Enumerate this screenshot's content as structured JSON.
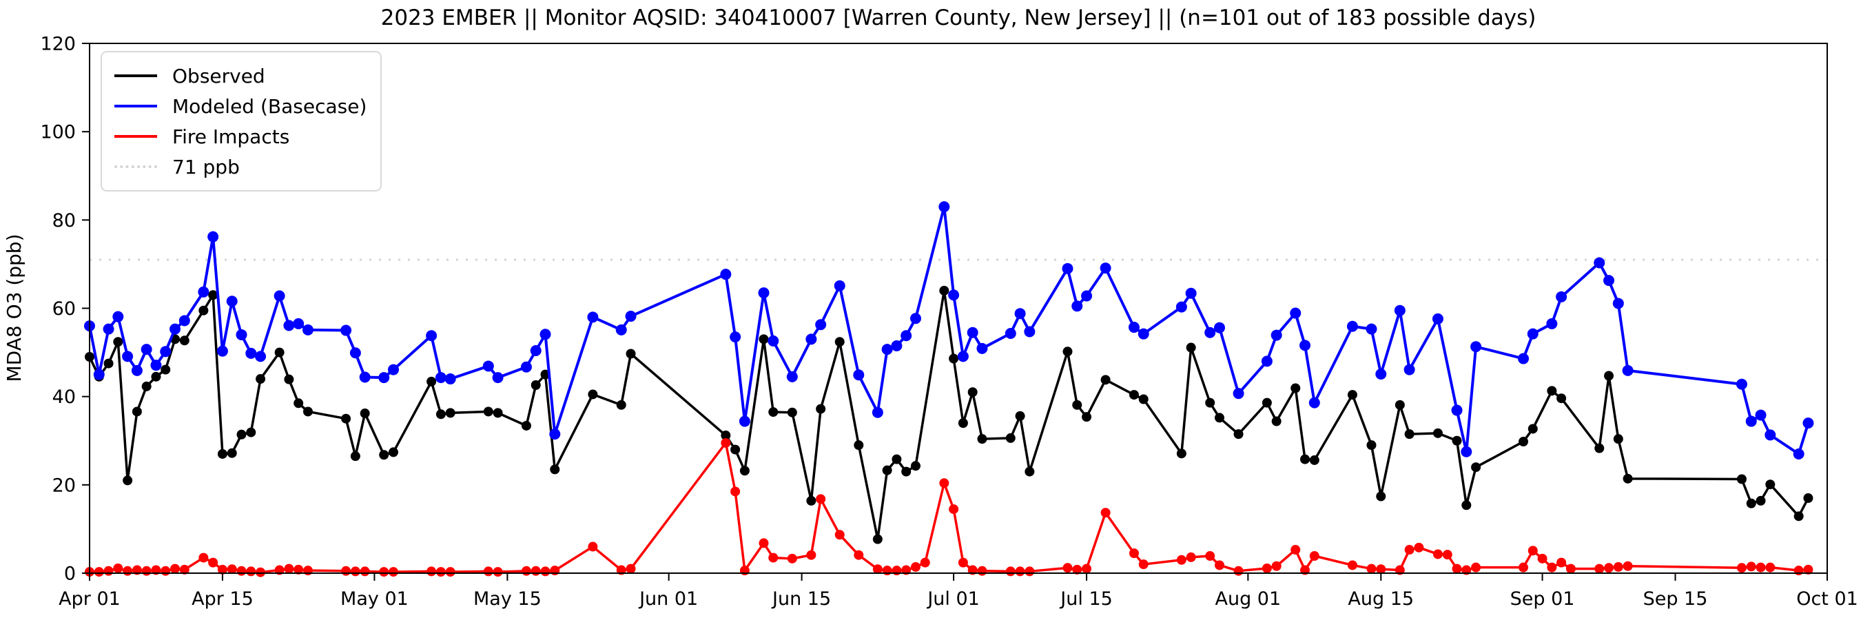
{
  "title": "2023 EMBER || Monitor AQSID: 340410007 [Warren County, New Jersey] || (n=101 out of 183 possible days)",
  "legend": {
    "items": [
      {
        "label": "Observed",
        "color": "#000000",
        "style": "solid"
      },
      {
        "label": "Modeled (Basecase)",
        "color": "#0000ff",
        "style": "solid"
      },
      {
        "label": "Fire Impacts",
        "color": "#ff0000",
        "style": "solid"
      },
      {
        "label": "71 ppb",
        "color": "#d3d3d3",
        "style": "dotted"
      }
    ]
  },
  "axes": {
    "ylabel": "MDA8 O3 (ppb)",
    "ylim": [
      0,
      120
    ],
    "yticks": [
      0,
      20,
      40,
      60,
      80,
      100,
      120
    ],
    "xlim_days": [
      0,
      183
    ],
    "xticks": [
      {
        "day": 0,
        "label": "Apr 01"
      },
      {
        "day": 14,
        "label": "Apr 15"
      },
      {
        "day": 30,
        "label": "May 01"
      },
      {
        "day": 44,
        "label": "May 15"
      },
      {
        "day": 61,
        "label": "Jun 01"
      },
      {
        "day": 75,
        "label": "Jun 15"
      },
      {
        "day": 91,
        "label": "Jul 01"
      },
      {
        "day": 105,
        "label": "Jul 15"
      },
      {
        "day": 122,
        "label": "Aug 01"
      },
      {
        "day": 136,
        "label": "Aug 15"
      },
      {
        "day": 153,
        "label": "Sep 01"
      },
      {
        "day": 167,
        "label": "Sep 15"
      },
      {
        "day": 183,
        "label": "Oct 01"
      }
    ],
    "grid": false
  },
  "chart_data": {
    "type": "line",
    "x_unit": "days since Apr 01, 2023",
    "threshold_ppb": 71,
    "threshold_color": "#d3d3d3",
    "series": [
      {
        "name": "Observed",
        "color": "#000000",
        "marker_radius": 7,
        "line_width": 3.5,
        "days": [
          0,
          1,
          2,
          3,
          4,
          5,
          6,
          7,
          8,
          9,
          10,
          12,
          13,
          14,
          15,
          16,
          17,
          18,
          20,
          21,
          22,
          23,
          27,
          28,
          29,
          31,
          32,
          36,
          37,
          38,
          42,
          43,
          46,
          47,
          48,
          49,
          53,
          56,
          57,
          67,
          68,
          69,
          71,
          72,
          74,
          76,
          77,
          79,
          81,
          83,
          84,
          85,
          86,
          87,
          90,
          91,
          92,
          93,
          94,
          97,
          98,
          99,
          103,
          104,
          105,
          107,
          110,
          111,
          115,
          116,
          118,
          119,
          121,
          124,
          125,
          127,
          128,
          129,
          133,
          135,
          136,
          138,
          139,
          142,
          144,
          145,
          146,
          151,
          152,
          154,
          155,
          159,
          160,
          161,
          162,
          174,
          175,
          176,
          177,
          180,
          181
        ],
        "values": [
          49,
          44.5,
          47.5,
          52.4,
          21,
          36.6,
          42.3,
          44.5,
          46.1,
          53,
          52.7,
          59.5,
          63,
          27,
          27.2,
          31.4,
          31.9,
          44,
          50,
          43.9,
          38.5,
          36.6,
          35,
          26.5,
          36.2,
          26.8,
          27.4,
          43.4,
          36,
          36.3,
          36.6,
          36.3,
          33.4,
          42.6,
          45,
          23.5,
          40.5,
          38.1,
          49.7,
          31.2,
          28,
          23.2,
          53,
          36.5,
          36.4,
          16.4,
          37.2,
          52.4,
          29,
          7.7,
          23.3,
          25.8,
          23,
          24.3,
          64,
          48.6,
          34,
          41,
          30.4,
          30.6,
          35.6,
          23,
          50.2,
          38.1,
          35.4,
          43.8,
          40.4,
          39.4,
          27.1,
          51.1,
          38.6,
          35.2,
          31.5,
          38.6,
          34.4,
          41.9,
          25.8,
          25.6,
          40.4,
          29,
          17.4,
          38.1,
          31.5,
          31.7,
          30,
          15.4,
          24,
          29.8,
          32.7,
          41.3,
          39.6,
          28.3,
          44.7,
          30.4,
          21.4,
          21.3,
          15.8,
          16.4,
          20.1,
          12.9,
          17
        ]
      },
      {
        "name": "Modeled (Basecase)",
        "color": "#0000ff",
        "marker_radius": 8,
        "line_width": 4,
        "days": [
          0,
          1,
          2,
          3,
          4,
          5,
          6,
          7,
          8,
          9,
          10,
          12,
          13,
          14,
          15,
          16,
          17,
          18,
          20,
          21,
          22,
          23,
          27,
          28,
          29,
          31,
          32,
          36,
          37,
          38,
          42,
          43,
          46,
          47,
          48,
          49,
          53,
          56,
          57,
          67,
          68,
          69,
          71,
          72,
          74,
          76,
          77,
          79,
          81,
          83,
          84,
          85,
          86,
          87,
          90,
          91,
          92,
          93,
          94,
          97,
          98,
          99,
          103,
          104,
          105,
          107,
          110,
          111,
          115,
          116,
          118,
          119,
          121,
          124,
          125,
          127,
          128,
          129,
          133,
          135,
          136,
          138,
          139,
          142,
          144,
          145,
          146,
          151,
          152,
          154,
          155,
          159,
          160,
          161,
          162,
          174,
          175,
          176,
          177,
          180,
          181
        ],
        "values": [
          56,
          45,
          55.3,
          58.1,
          49.1,
          45.9,
          50.7,
          47.1,
          50.2,
          55.3,
          57.2,
          63.7,
          76.2,
          50.3,
          61.6,
          54,
          49.8,
          49.1,
          62.8,
          56.1,
          56.5,
          55.1,
          55,
          49.9,
          44.4,
          44.3,
          46.1,
          53.8,
          44.3,
          44,
          46.9,
          44.3,
          46.7,
          50.4,
          54.1,
          31.5,
          58,
          55.1,
          58.2,
          67.7,
          53.5,
          34.4,
          63.5,
          52.6,
          44.5,
          53,
          56.3,
          65.1,
          44.9,
          36.4,
          50.7,
          51.5,
          53.8,
          57.7,
          83,
          63,
          49.1,
          54.5,
          50.9,
          54.3,
          58.8,
          54.7,
          69,
          60.5,
          62.8,
          69.1,
          55.7,
          54.2,
          60.3,
          63.4,
          54.5,
          55.6,
          40.7,
          48,
          53.9,
          58.9,
          51.6,
          38.6,
          55.9,
          55.3,
          45.1,
          59.5,
          46.1,
          57.6,
          36.9,
          27.5,
          51.3,
          48.6,
          54.2,
          56.5,
          62.6,
          70.3,
          66.3,
          61.1,
          45.9,
          42.8,
          34.4,
          35.8,
          31.3,
          27,
          34
        ]
      },
      {
        "name": "Fire Impacts",
        "color": "#ff0000",
        "marker_radius": 7,
        "line_width": 3.5,
        "days": [
          0,
          1,
          2,
          3,
          4,
          5,
          6,
          7,
          8,
          9,
          10,
          12,
          13,
          14,
          15,
          16,
          17,
          18,
          20,
          21,
          22,
          23,
          27,
          28,
          29,
          31,
          32,
          36,
          37,
          38,
          42,
          43,
          46,
          47,
          48,
          49,
          53,
          56,
          57,
          67,
          68,
          69,
          71,
          72,
          74,
          76,
          77,
          79,
          81,
          83,
          84,
          85,
          86,
          87,
          88,
          90,
          91,
          92,
          93,
          94,
          97,
          98,
          99,
          103,
          104,
          105,
          107,
          110,
          111,
          115,
          116,
          118,
          119,
          121,
          124,
          125,
          127,
          128,
          129,
          133,
          135,
          136,
          138,
          139,
          140,
          142,
          143,
          144,
          145,
          146,
          151,
          152,
          153,
          154,
          155,
          156,
          159,
          160,
          161,
          162,
          174,
          175,
          176,
          177,
          180,
          181
        ],
        "values": [
          0.3,
          0.3,
          0.5,
          1.1,
          0.5,
          0.7,
          0.5,
          0.7,
          0.5,
          1.0,
          0.8,
          3.5,
          2.4,
          0.8,
          0.9,
          0.5,
          0.4,
          0.2,
          0.7,
          1.0,
          0.8,
          0.6,
          0.5,
          0.4,
          0.4,
          0.3,
          0.3,
          0.4,
          0.3,
          0.3,
          0.4,
          0.3,
          0.5,
          0.5,
          0.4,
          0.6,
          6.0,
          0.7,
          1.0,
          29.5,
          18.5,
          0.6,
          6.8,
          3.5,
          3.3,
          4.1,
          16.8,
          8.7,
          4.1,
          0.9,
          0.6,
          0.6,
          0.7,
          1.4,
          2.4,
          20.4,
          14.5,
          2.4,
          0.7,
          0.5,
          0.4,
          0.4,
          0.4,
          1.2,
          0.8,
          1.0,
          13.7,
          4.5,
          2.0,
          3.0,
          3.6,
          3.9,
          1.8,
          0.5,
          1.1,
          1.6,
          5.3,
          0.7,
          3.9,
          1.8,
          1.0,
          0.9,
          0.7,
          5.3,
          5.8,
          4.3,
          4.2,
          1.0,
          0.7,
          1.3,
          1.3,
          5.1,
          3.3,
          1.3,
          2.4,
          1.0,
          1.0,
          1.2,
          1.4,
          1.6,
          1.2,
          1.5,
          1.3,
          1.3,
          0.6,
          0.8
        ]
      }
    ]
  }
}
